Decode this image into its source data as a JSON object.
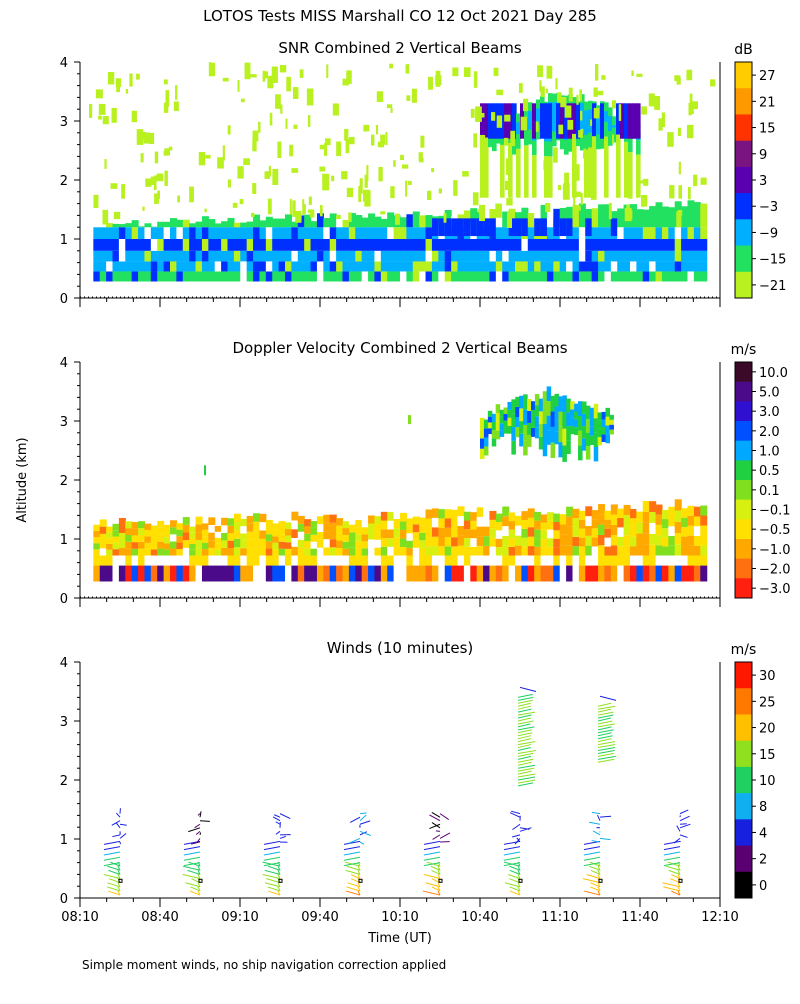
{
  "title": "LOTOS Tests MISS Marshall CO  12 Oct 2021 Day 285",
  "y_axis_label": "Altitude (km)",
  "x_axis_label": "Time (UT)",
  "footer_note": "Simple moment winds, no ship navigation correction applied",
  "chart_data": [
    {
      "type": "heatmap",
      "title": "SNR Combined 2 Vertical Beams",
      "unit": "dB",
      "ylim": [
        0,
        4
      ],
      "yticks": [
        "0",
        "1",
        "2",
        "3",
        "4"
      ],
      "colorbar_labels": [
        "27",
        "21",
        "15",
        "9",
        "3",
        "−3",
        "−9",
        "−15",
        "−21"
      ],
      "colorbar_colors": [
        "#ffcc00",
        "#ff9900",
        "#ff3300",
        "#7a1480",
        "#5a00b0",
        "#0030ff",
        "#00b0ff",
        "#22e060",
        "#b8f020"
      ],
      "layers": [
        {
          "name": "boundary layer",
          "altitude_km": [
            0.3,
            1.6
          ],
          "value_db": -9
        },
        {
          "name": "upper cloud",
          "altitude_km": [
            1.8,
            3.6
          ],
          "time": [
            "10:40",
            "11:40"
          ],
          "value_db": -3
        }
      ]
    },
    {
      "type": "heatmap",
      "title": "Doppler Velocity Combined 2 Vertical Beams",
      "unit": "m/s",
      "ylim": [
        0,
        4
      ],
      "yticks": [
        "0",
        "1",
        "2",
        "3",
        "4"
      ],
      "colorbar_labels": [
        "10.0",
        "5.0",
        "3.0",
        "2.0",
        "1.0",
        "0.5",
        "0.1",
        "−0.1",
        "−0.5",
        "−1.0",
        "−2.0",
        "−3.0"
      ],
      "colorbar_colors": [
        "#3a0a28",
        "#4a0a8a",
        "#3010d0",
        "#0050ff",
        "#00a8ff",
        "#20d040",
        "#80e020",
        "#d8f010",
        "#ffe000",
        "#ffa800",
        "#ff7010",
        "#ff2010"
      ]
    },
    {
      "type": "wind_barbs",
      "title": "Winds (10 minutes)",
      "unit": "m/s",
      "ylim": [
        0,
        4
      ],
      "yticks": [
        "0",
        "1",
        "2",
        "3",
        "4"
      ],
      "xticks": [
        "08:10",
        "08:40",
        "09:10",
        "09:40",
        "10:10",
        "10:40",
        "11:10",
        "11:40",
        "12:10"
      ],
      "colorbar_labels": [
        "30",
        "25",
        "20",
        "15",
        "10",
        "8",
        "4",
        "2",
        "0"
      ],
      "colorbar_colors": [
        "#ff1800",
        "#ff7800",
        "#ffc000",
        "#90e020",
        "#20d060",
        "#10b0f0",
        "#1820e0",
        "#5a0070",
        "#000000"
      ],
      "profiles": [
        {
          "time": "08:25",
          "low_speed": 20,
          "high_speed": 8
        },
        {
          "time": "08:55",
          "low_speed": 20,
          "high_speed": 4
        },
        {
          "time": "09:25",
          "low_speed": 20,
          "high_speed": 8
        },
        {
          "time": "09:55",
          "low_speed": 25,
          "high_speed": 10
        },
        {
          "time": "10:25",
          "low_speed": 25,
          "high_speed": 4
        },
        {
          "time": "10:55",
          "low_speed": 20,
          "high_speed": 8,
          "upper_speed": 15
        },
        {
          "time": "11:25",
          "low_speed": 25,
          "high_speed": 10,
          "upper_speed": 15
        },
        {
          "time": "11:55",
          "low_speed": 25,
          "high_speed": 8
        }
      ]
    }
  ]
}
